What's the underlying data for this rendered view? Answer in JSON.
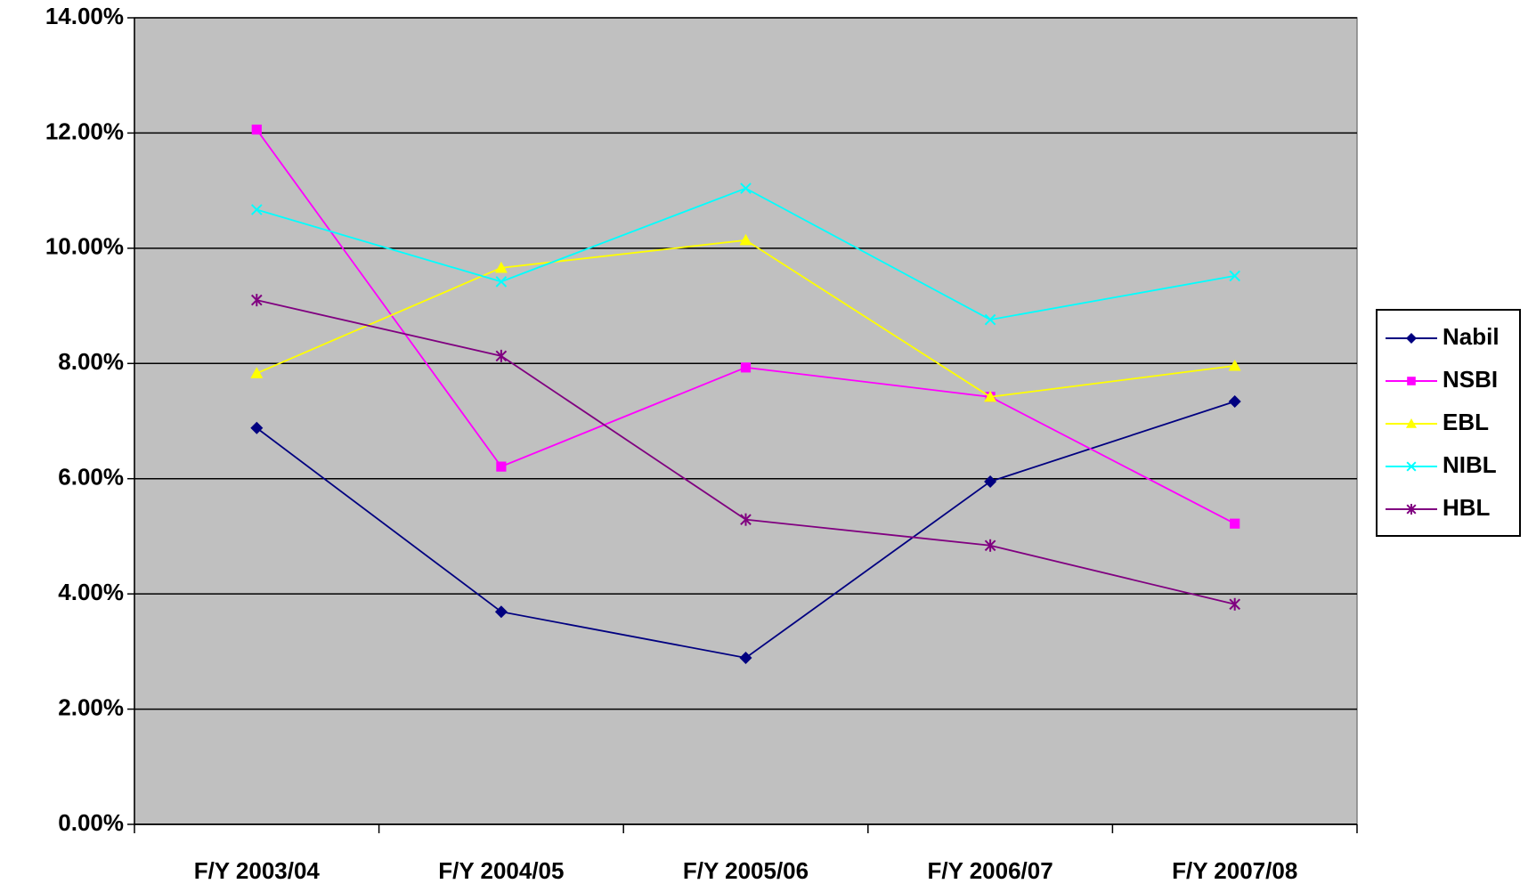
{
  "chart_data": {
    "type": "line",
    "categories": [
      "F/Y 2003/04",
      "F/Y 2004/05",
      "F/Y 2005/06",
      "F/Y 2006/07",
      "F/Y 2007/08"
    ],
    "series": [
      {
        "name": "Nabil",
        "color": "#000080",
        "marker": "diamond",
        "values": [
          6.88,
          3.69,
          2.89,
          5.95,
          7.34
        ]
      },
      {
        "name": "NSBI",
        "color": "#ff00ff",
        "marker": "square",
        "values": [
          12.06,
          6.21,
          7.93,
          7.42,
          5.22
        ]
      },
      {
        "name": "EBL",
        "color": "#ffff00",
        "marker": "triangle",
        "values": [
          7.83,
          9.66,
          10.14,
          7.42,
          7.96
        ]
      },
      {
        "name": "NIBL",
        "color": "#00ffff",
        "marker": "x",
        "values": [
          10.67,
          9.42,
          11.04,
          8.76,
          9.52
        ]
      },
      {
        "name": "HBL",
        "color": "#800080",
        "marker": "star",
        "values": [
          9.1,
          8.13,
          5.29,
          4.84,
          3.82
        ]
      }
    ],
    "ylim": [
      0,
      14
    ],
    "yticks": [
      {
        "value": 0,
        "label": "0.00%"
      },
      {
        "value": 2,
        "label": "2.00%"
      },
      {
        "value": 4,
        "label": "4.00%"
      },
      {
        "value": 6,
        "label": "6.00%"
      },
      {
        "value": 8,
        "label": "8.00%"
      },
      {
        "value": 10,
        "label": "10.00%"
      },
      {
        "value": 12,
        "label": "12.00%"
      },
      {
        "value": 14,
        "label": "14.00%"
      }
    ],
    "grid": true,
    "plot_background": "#c0c0c0",
    "legend": "right"
  }
}
